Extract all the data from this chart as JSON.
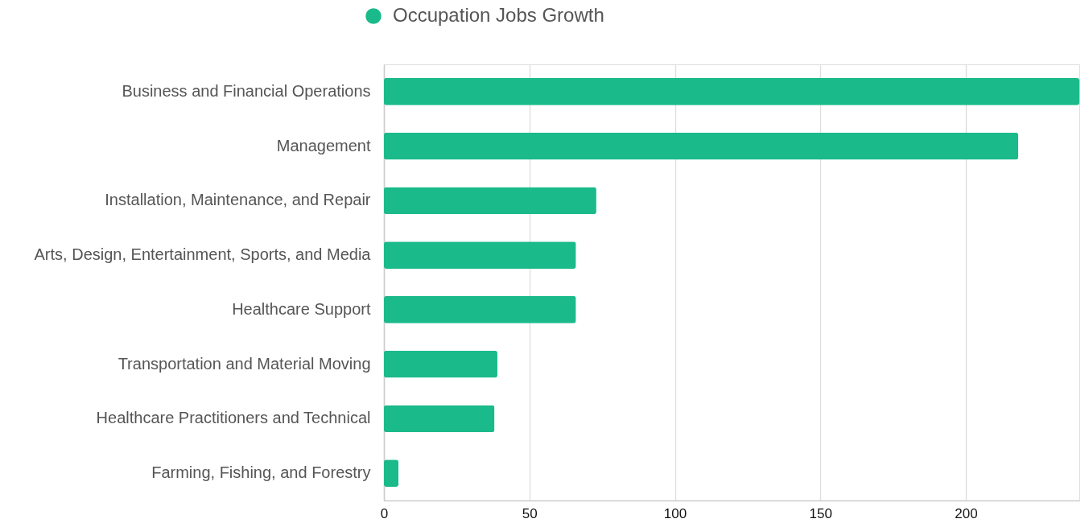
{
  "chart_data": {
    "type": "bar",
    "orientation": "horizontal",
    "categories": [
      "Business and Financial Operations",
      "Management",
      "Installation, Maintenance, and Repair",
      "Arts, Design, Entertainment, Sports, and Media",
      "Healthcare Support",
      "Transportation and Material Moving",
      "Healthcare Practitioners and Technical",
      "Farming, Fishing, and Forestry"
    ],
    "series": [
      {
        "name": "Occupation Jobs Growth",
        "color": "#1aba8a",
        "values": [
          239,
          218,
          73,
          66,
          66,
          39,
          38,
          5
        ]
      }
    ],
    "xlim": [
      0,
      239
    ],
    "xticks": [
      0,
      50,
      100,
      150,
      200
    ],
    "grid": "x",
    "legend": "top"
  }
}
